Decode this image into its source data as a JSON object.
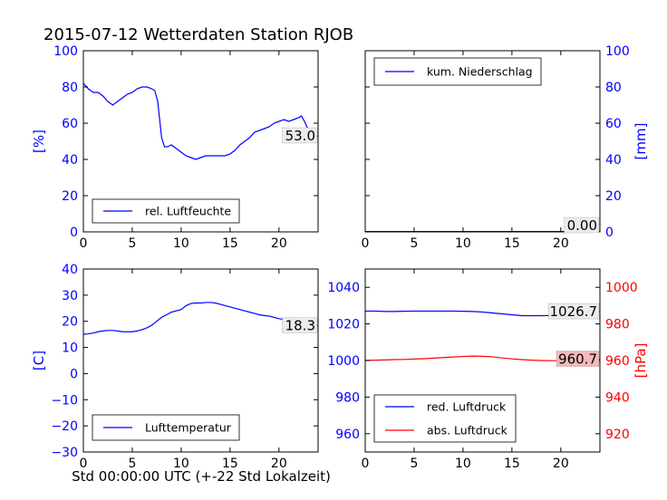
{
  "figure": {
    "title": "2015-07-12 Wetterdaten Station RJOB",
    "xlabel": "Std 00:00:00 UTC (+-22 Std Lokalzeit)"
  },
  "chart_data": [
    {
      "type": "line",
      "ylabel": "[%]",
      "xlim": [
        0,
        24
      ],
      "ylim": [
        0,
        100
      ],
      "xticks": [
        0,
        5,
        10,
        15,
        20
      ],
      "yticks": [
        0,
        20,
        40,
        60,
        80,
        100
      ],
      "legend": "lower-left",
      "annotation": "53.0",
      "tick_color": "#0000ff",
      "series": [
        {
          "name": "rel. Luftfeuchte",
          "color": "#0000ff",
          "x": [
            0,
            0.5,
            1,
            1.5,
            2,
            2.5,
            3,
            3.5,
            4,
            4.5,
            5,
            5.5,
            6,
            6.5,
            7,
            7.3,
            7.6,
            7.8,
            8,
            8.3,
            8.6,
            9,
            9.5,
            10,
            10.5,
            11,
            11.5,
            12,
            12.5,
            13,
            13.5,
            14,
            14.5,
            15,
            15.5,
            16,
            16.5,
            17,
            17.5,
            18,
            18.5,
            19,
            19.5,
            20,
            20.5,
            21,
            21.5,
            22,
            22.3,
            22.7,
            23,
            23.5,
            24
          ],
          "y": [
            82,
            79,
            77,
            77,
            75,
            72,
            70,
            72,
            74,
            76,
            77,
            79,
            80,
            80,
            79,
            78,
            72,
            62,
            52,
            47,
            47,
            48,
            46,
            44,
            42,
            41,
            40,
            41,
            42,
            42,
            42,
            42,
            42,
            43,
            45,
            48,
            50,
            52,
            55,
            56,
            57,
            58,
            60,
            61,
            62,
            61,
            62,
            63,
            64,
            60,
            56,
            52,
            53
          ]
        }
      ]
    },
    {
      "type": "line",
      "ylabel": "[mm]",
      "xlim": [
        0,
        24
      ],
      "ylim": [
        0,
        100
      ],
      "xticks": [
        0,
        5,
        10,
        15,
        20
      ],
      "yticks": [
        0,
        20,
        40,
        60,
        80,
        100
      ],
      "legend": "upper-left",
      "annotation": "0.00",
      "tick_color": "#0000ff",
      "series": [
        {
          "name": "kum. Niederschlag",
          "color": "#0000ff",
          "x": [
            0,
            24
          ],
          "y": [
            0,
            0
          ]
        }
      ]
    },
    {
      "type": "line",
      "ylabel": "[C]",
      "xlim": [
        0,
        24
      ],
      "ylim": [
        -30,
        40
      ],
      "xticks": [
        0,
        5,
        10,
        15,
        20
      ],
      "yticks": [
        -30,
        -20,
        -10,
        0,
        10,
        20,
        30,
        40
      ],
      "legend": "lower-left",
      "annotation": "18.3",
      "tick_color": "#0000ff",
      "series": [
        {
          "name": "Lufttemperatur",
          "color": "#0000ff",
          "x": [
            0,
            0.5,
            1,
            1.5,
            2,
            2.5,
            3,
            3.5,
            4,
            4.5,
            5,
            5.5,
            6,
            6.5,
            7,
            7.5,
            8,
            8.5,
            9,
            9.5,
            10,
            10.5,
            11,
            11.5,
            12,
            12.5,
            13,
            13.5,
            14,
            14.5,
            15,
            15.5,
            16,
            16.5,
            17,
            17.5,
            18,
            18.5,
            19,
            19.5,
            20,
            20.5,
            21,
            21.5,
            22,
            22.5,
            23,
            23.5,
            24
          ],
          "y": [
            15.0,
            15.2,
            15.5,
            16.0,
            16.3,
            16.5,
            16.5,
            16.3,
            16.0,
            16.0,
            16.0,
            16.3,
            16.8,
            17.5,
            18.5,
            20.0,
            21.5,
            22.5,
            23.5,
            24.0,
            24.5,
            26.0,
            26.8,
            27.0,
            27.0,
            27.2,
            27.2,
            27.0,
            26.5,
            26.0,
            25.5,
            25.0,
            24.5,
            24.0,
            23.5,
            23.0,
            22.5,
            22.2,
            22.0,
            21.5,
            21.0,
            20.7,
            20.5,
            20.3,
            20.0,
            19.5,
            19.0,
            18.6,
            18.3
          ]
        }
      ]
    },
    {
      "type": "line",
      "xlim": [
        0,
        24
      ],
      "ylim": [
        950,
        1050
      ],
      "ylim_right": [
        910,
        1010
      ],
      "ylabel_right": "[hPa]",
      "xticks": [
        0,
        5,
        10,
        15,
        20
      ],
      "yticks": [
        960,
        980,
        1000,
        1020,
        1040
      ],
      "yticks_right": [
        920,
        940,
        960,
        980,
        1000
      ],
      "tick_color": "#0000ff",
      "tick_color_right": "#ff0000",
      "legend": "lower-left",
      "annotations": [
        "1026.7",
        "960.7"
      ],
      "series": [
        {
          "name": "red. Luftdruck",
          "color": "#0000ff",
          "axis": "left",
          "x": [
            0,
            1,
            2,
            3,
            4,
            5,
            6,
            7,
            8,
            9,
            10,
            11,
            12,
            13,
            14,
            15,
            16,
            17,
            18,
            19,
            20,
            21,
            22,
            23,
            24
          ],
          "y": [
            1027.0,
            1027.0,
            1026.8,
            1026.8,
            1026.9,
            1027.0,
            1027.0,
            1027.0,
            1027.0,
            1027.0,
            1026.9,
            1026.8,
            1026.5,
            1026.0,
            1025.5,
            1025.0,
            1024.5,
            1024.5,
            1024.5,
            1024.6,
            1024.8,
            1025.3,
            1026.0,
            1026.5,
            1026.7
          ]
        },
        {
          "name": "abs. Luftdruck",
          "color": "#ff0000",
          "axis": "right",
          "x": [
            0,
            1,
            2,
            3,
            4,
            5,
            6,
            7,
            8,
            9,
            10,
            11,
            12,
            13,
            14,
            15,
            16,
            17,
            18,
            19,
            20,
            21,
            22,
            23,
            24
          ],
          "y": [
            960.0,
            960.2,
            960.3,
            960.5,
            960.6,
            960.8,
            961.0,
            961.3,
            961.6,
            961.9,
            962.2,
            962.4,
            962.3,
            962.0,
            961.4,
            960.9,
            960.5,
            960.2,
            960.0,
            959.9,
            959.9,
            960.1,
            960.3,
            960.5,
            960.7
          ]
        }
      ]
    }
  ]
}
